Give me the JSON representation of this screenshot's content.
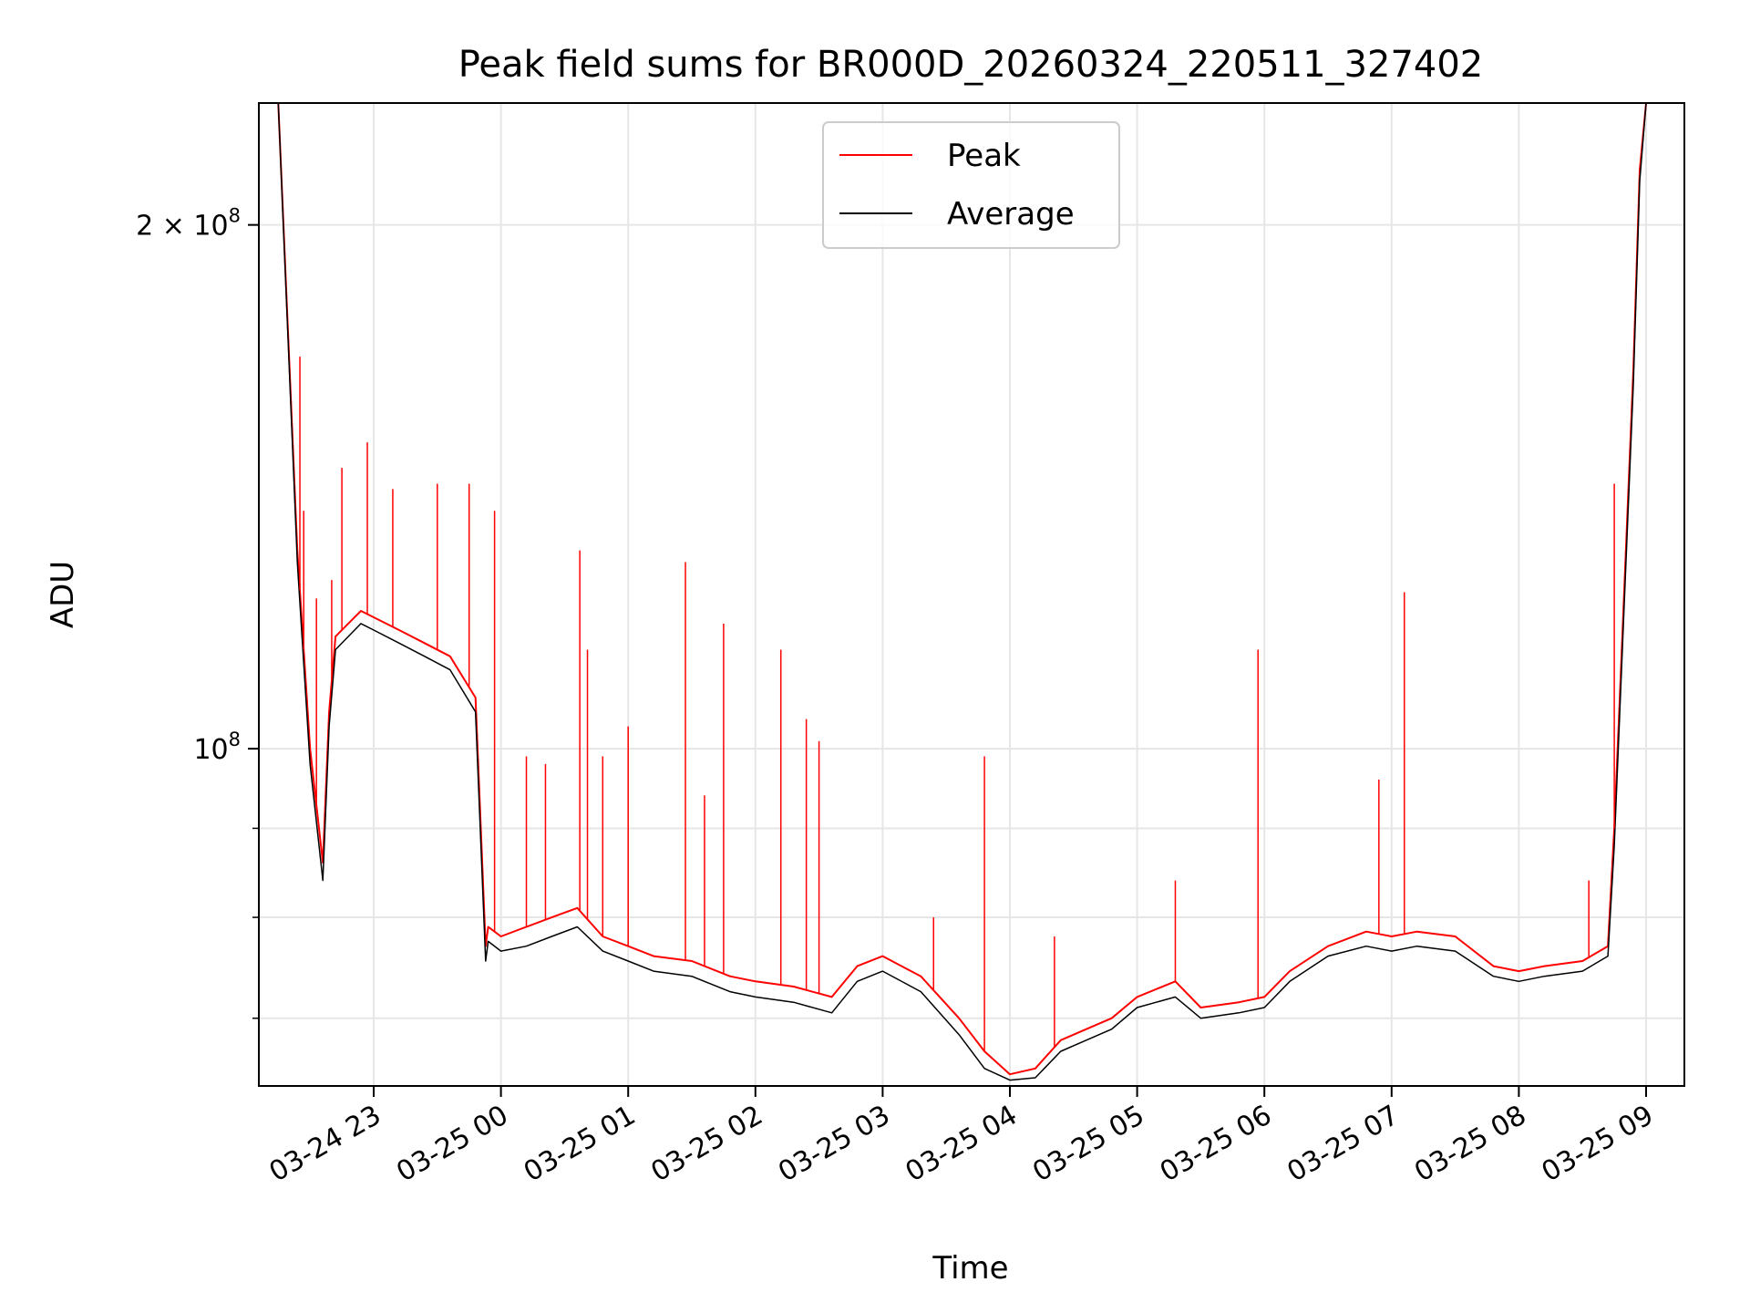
{
  "chart_data": {
    "type": "line",
    "title": "Peak field sums for BR000D_20260324_220511_327402",
    "xlabel": "Time",
    "ylabel": "ADU",
    "yscale": "log",
    "ylim": [
      64000000,
      235000000
    ],
    "grid": true,
    "legend": {
      "placement": "top-center",
      "entries": [
        "Peak",
        "Average"
      ]
    },
    "x_ticks": [
      "03-24 23",
      "03-25 00",
      "03-25 01",
      "03-25 02",
      "03-25 03",
      "03-25 04",
      "03-25 05",
      "03-25 06",
      "03-25 07",
      "03-25 08",
      "03-25 09"
    ],
    "y_ticks": [
      {
        "value": 200000000,
        "label_base": "2 × 10",
        "label_exp": "8"
      },
      {
        "value": 100000000,
        "label_base": "10",
        "label_exp": "8"
      }
    ],
    "y_minor_ticks": [
      90000000,
      80000000,
      70000000
    ],
    "series": [
      {
        "name": "Peak",
        "color": "#ff0000",
        "x_hours": [
          -1.9,
          -1.75,
          -1.6,
          -1.5,
          -1.4,
          -1.35,
          -1.3,
          -1.2,
          -1.1,
          -1.0,
          -0.8,
          -0.6,
          -0.4,
          -0.2,
          -0.12,
          -0.1,
          0.0,
          0.2,
          0.4,
          0.6,
          0.8,
          1.0,
          1.2,
          1.5,
          1.8,
          2.0,
          2.3,
          2.6,
          2.8,
          3.0,
          3.3,
          3.6,
          3.8,
          4.0,
          4.2,
          4.4,
          4.6,
          4.8,
          5.0,
          5.3,
          5.5,
          5.8,
          6.0,
          6.2,
          6.5,
          6.8,
          7.0,
          7.2,
          7.5,
          7.8,
          8.0,
          8.2,
          8.5,
          8.7,
          8.75,
          8.8,
          8.9,
          8.95,
          9.0
        ],
        "values": [
          235000000,
          235000000,
          130000000,
          100000000,
          86000000,
          105000000,
          116000000,
          118000000,
          120000000,
          119000000,
          117000000,
          115000000,
          113000000,
          107000000,
          77000000,
          79000000,
          78000000,
          79000000,
          80000000,
          81000000,
          78000000,
          77000000,
          76000000,
          75500000,
          74000000,
          73500000,
          73000000,
          72000000,
          75000000,
          76000000,
          74000000,
          70000000,
          67000000,
          65000000,
          65500000,
          68000000,
          69000000,
          70000000,
          72000000,
          73500000,
          71000000,
          71500000,
          72000000,
          74500000,
          77000000,
          78500000,
          78000000,
          78500000,
          78000000,
          75000000,
          74500000,
          75000000,
          75500000,
          77000000,
          90000000,
          110000000,
          165000000,
          215000000,
          235000000
        ]
      },
      {
        "name": "Average",
        "color": "#000000",
        "x_hours": [
          -1.9,
          -1.75,
          -1.6,
          -1.5,
          -1.4,
          -1.35,
          -1.3,
          -1.2,
          -1.1,
          -1.0,
          -0.8,
          -0.6,
          -0.4,
          -0.2,
          -0.12,
          -0.1,
          0.0,
          0.2,
          0.4,
          0.6,
          0.8,
          1.0,
          1.2,
          1.5,
          1.8,
          2.0,
          2.3,
          2.6,
          2.8,
          3.0,
          3.3,
          3.6,
          3.8,
          4.0,
          4.2,
          4.4,
          4.6,
          4.8,
          5.0,
          5.3,
          5.5,
          5.8,
          6.0,
          6.2,
          6.5,
          6.8,
          7.0,
          7.2,
          7.5,
          7.8,
          8.0,
          8.2,
          8.5,
          8.7,
          8.75,
          8.8,
          8.9,
          8.95,
          9.0
        ],
        "values": [
          235000000,
          235000000,
          128000000,
          98000000,
          84000000,
          103000000,
          114000000,
          116000000,
          118000000,
          117000000,
          115000000,
          113000000,
          111000000,
          105000000,
          75500000,
          77500000,
          76500000,
          77000000,
          78000000,
          79000000,
          76500000,
          75500000,
          74500000,
          74000000,
          72500000,
          72000000,
          71500000,
          70500000,
          73500000,
          74500000,
          72500000,
          68500000,
          65500000,
          64500000,
          64700000,
          67000000,
          68000000,
          69000000,
          71000000,
          72000000,
          70000000,
          70500000,
          71000000,
          73500000,
          76000000,
          77000000,
          76500000,
          77000000,
          76500000,
          74000000,
          73500000,
          74000000,
          74500000,
          76000000,
          88000000,
          108000000,
          162000000,
          212000000,
          235000000
        ]
      }
    ],
    "peak_spikes": [
      {
        "x_hours": -1.58,
        "value": 168000000
      },
      {
        "x_hours": -1.55,
        "value": 137000000
      },
      {
        "x_hours": -1.45,
        "value": 122000000
      },
      {
        "x_hours": -1.33,
        "value": 125000000
      },
      {
        "x_hours": -1.25,
        "value": 145000000
      },
      {
        "x_hours": -1.05,
        "value": 150000000
      },
      {
        "x_hours": -0.85,
        "value": 141000000
      },
      {
        "x_hours": -0.5,
        "value": 142000000
      },
      {
        "x_hours": -0.25,
        "value": 142000000
      },
      {
        "x_hours": -0.05,
        "value": 137000000
      },
      {
        "x_hours": 0.2,
        "value": 99000000
      },
      {
        "x_hours": 0.35,
        "value": 98000000
      },
      {
        "x_hours": 0.62,
        "value": 130000000
      },
      {
        "x_hours": 0.68,
        "value": 114000000
      },
      {
        "x_hours": 0.8,
        "value": 99000000
      },
      {
        "x_hours": 1.0,
        "value": 103000000
      },
      {
        "x_hours": 1.45,
        "value": 128000000
      },
      {
        "x_hours": 1.6,
        "value": 94000000
      },
      {
        "x_hours": 1.75,
        "value": 118000000
      },
      {
        "x_hours": 2.2,
        "value": 114000000
      },
      {
        "x_hours": 2.4,
        "value": 104000000
      },
      {
        "x_hours": 2.5,
        "value": 101000000
      },
      {
        "x_hours": 3.4,
        "value": 80000000
      },
      {
        "x_hours": 3.8,
        "value": 99000000
      },
      {
        "x_hours": 4.35,
        "value": 78000000
      },
      {
        "x_hours": 5.3,
        "value": 84000000
      },
      {
        "x_hours": 5.95,
        "value": 114000000
      },
      {
        "x_hours": 6.9,
        "value": 96000000
      },
      {
        "x_hours": 7.1,
        "value": 123000000
      },
      {
        "x_hours": 8.55,
        "value": 84000000
      },
      {
        "x_hours": 8.75,
        "value": 142000000
      }
    ]
  }
}
